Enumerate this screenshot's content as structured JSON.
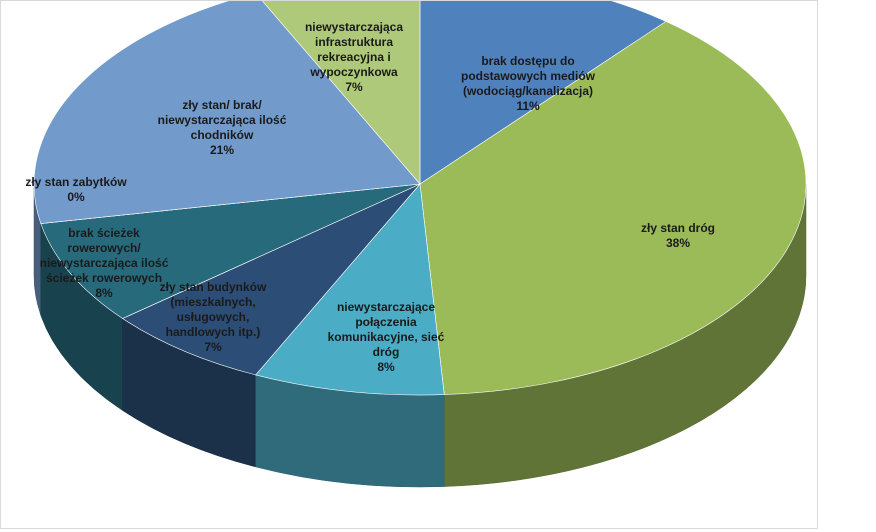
{
  "chart_data": {
    "type": "pie",
    "title": "",
    "legend": "none",
    "three_d": true,
    "slices": [
      {
        "label": [
          "brak dostępu do",
          "podstawowych mediów",
          "(wodociąg/kanalizacja)"
        ],
        "percent_label": "11%",
        "value": 11,
        "color": "#4f81bd"
      },
      {
        "label": [
          "zły stan  dróg"
        ],
        "percent_label": "38%",
        "value": 38,
        "color": "#9bbb59"
      },
      {
        "label": [
          "niewystarczające",
          "połączenia",
          "komunikacyjne, sieć",
          "dróg"
        ],
        "percent_label": "8%",
        "value": 8,
        "color": "#4bacc6"
      },
      {
        "label": [
          "zły stan  budynków",
          "(mieszkalnych,",
          "usługowych,",
          "handlowych itp.)"
        ],
        "percent_label": "7%",
        "value": 7,
        "color": "#2c4d75"
      },
      {
        "label": [
          "brak ścieżek",
          "rowerowych/",
          "niewystarczająca ilość",
          "ścieżek rowerowych"
        ],
        "percent_label": "8%",
        "value": 8,
        "color": "#276a7c"
      },
      {
        "label": [
          "zły stan  zabytków"
        ],
        "percent_label": "0%",
        "value": 0,
        "color": "#5f7530"
      },
      {
        "label": [
          "zły stan/  brak/",
          "niewystarczająca ilość",
          "chodników"
        ],
        "percent_label": "21%",
        "value": 21,
        "color": "#729aca"
      },
      {
        "label": [
          "niewystarczająca",
          "infrastruktura",
          "rekreacyjna i",
          "wypoczynkowa"
        ],
        "percent_label": "7%",
        "value": 7,
        "color": "#afc97a"
      }
    ]
  }
}
